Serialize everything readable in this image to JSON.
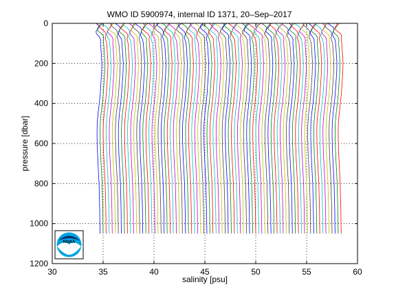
{
  "chart_data": {
    "type": "line",
    "title": "WMO ID 5900974, internal ID 1371, 20–Sep–2017",
    "xlabel": "salinity [psu]",
    "ylabel": "pressure [dbar]",
    "xlim": [
      30,
      60
    ],
    "ylim": [
      0,
      1200
    ],
    "y_reversed": true,
    "grid": true,
    "grid_style": "dotted",
    "x_ticks": [
      30,
      35,
      40,
      45,
      50,
      55,
      60
    ],
    "y_ticks": [
      0,
      200,
      400,
      600,
      800,
      1000,
      1200
    ],
    "x_tick_labels": [
      "30",
      "35",
      "40",
      "45",
      "50",
      "55",
      "60"
    ],
    "y_tick_labels": [
      "0",
      "200",
      "400",
      "600",
      "800",
      "1000",
      "1200"
    ],
    "profile_offset_psu": 0.3,
    "profile_count": 80,
    "series_colors": [
      "#0000ff",
      "#008000",
      "#ff0000",
      "#00bfbf",
      "#bf00bf",
      "#bfbf00",
      "#404040"
    ],
    "base_profile": {
      "pressure_dbar": [
        0,
        10,
        20,
        30,
        40,
        50,
        60,
        70,
        80,
        100,
        120,
        150,
        200,
        250,
        300,
        350,
        400,
        450,
        500,
        550,
        600,
        650,
        700,
        750,
        800,
        850,
        900,
        950,
        1000,
        1050
      ],
      "salinity_psu": [
        34.3,
        34.3,
        34.32,
        34.35,
        34.4,
        34.5,
        34.6,
        34.65,
        34.7,
        34.75,
        34.78,
        34.82,
        34.88,
        34.85,
        34.78,
        34.72,
        34.62,
        34.5,
        34.42,
        34.4,
        34.42,
        34.45,
        34.5,
        34.55,
        34.6,
        34.62,
        34.65,
        34.67,
        34.68,
        34.7
      ]
    },
    "logo": {
      "text": "NOAA",
      "name": "noaa-logo"
    }
  }
}
